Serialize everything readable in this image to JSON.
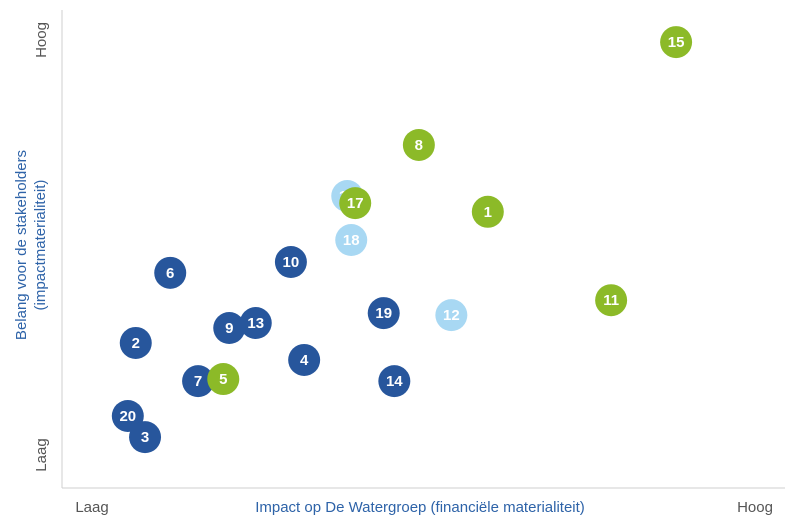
{
  "chart_data": {
    "type": "scatter",
    "xlabel": "Impact op De Watergroep (financiële materialiteit)",
    "ylabel": [
      "Belang voor de stakeholders",
      "(impactmaterialiteit)"
    ],
    "xlim": [
      0,
      100
    ],
    "ylim": [
      0,
      100
    ],
    "xticks": [
      {
        "value": 0,
        "label": "Laag"
      },
      {
        "value": 100,
        "label": "Hoog"
      }
    ],
    "yticks": [
      {
        "value": 0,
        "label": "Laag"
      },
      {
        "value": 100,
        "label": "Hoog"
      }
    ],
    "series": [
      {
        "color": "#27569c",
        "labels": [
          "6",
          "10",
          "19",
          "13",
          "9",
          "2",
          "4",
          "7",
          "14",
          "20",
          "3"
        ],
        "x": [
          11.8,
          30.0,
          44.0,
          24.7,
          20.7,
          6.6,
          32.0,
          16.0,
          45.6,
          5.4,
          8.0
        ],
        "values": [
          43.9,
          46.5,
          34.2,
          31.8,
          30.6,
          27.0,
          22.9,
          17.8,
          17.8,
          9.4,
          4.3
        ]
      },
      {
        "color": "#a8d8f3",
        "labels": [
          "16",
          "18",
          "12"
        ],
        "x": [
          38.5,
          39.1,
          54.2
        ],
        "values": [
          62.4,
          51.8,
          33.7
        ]
      },
      {
        "color": "#8cba28",
        "labels": [
          "15",
          "8",
          "17",
          "1",
          "11",
          "5"
        ],
        "x": [
          88.1,
          49.3,
          39.7,
          59.7,
          78.3,
          19.8
        ],
        "values": [
          99.5,
          74.7,
          60.7,
          58.6,
          37.3,
          18.3
        ]
      }
    ]
  }
}
